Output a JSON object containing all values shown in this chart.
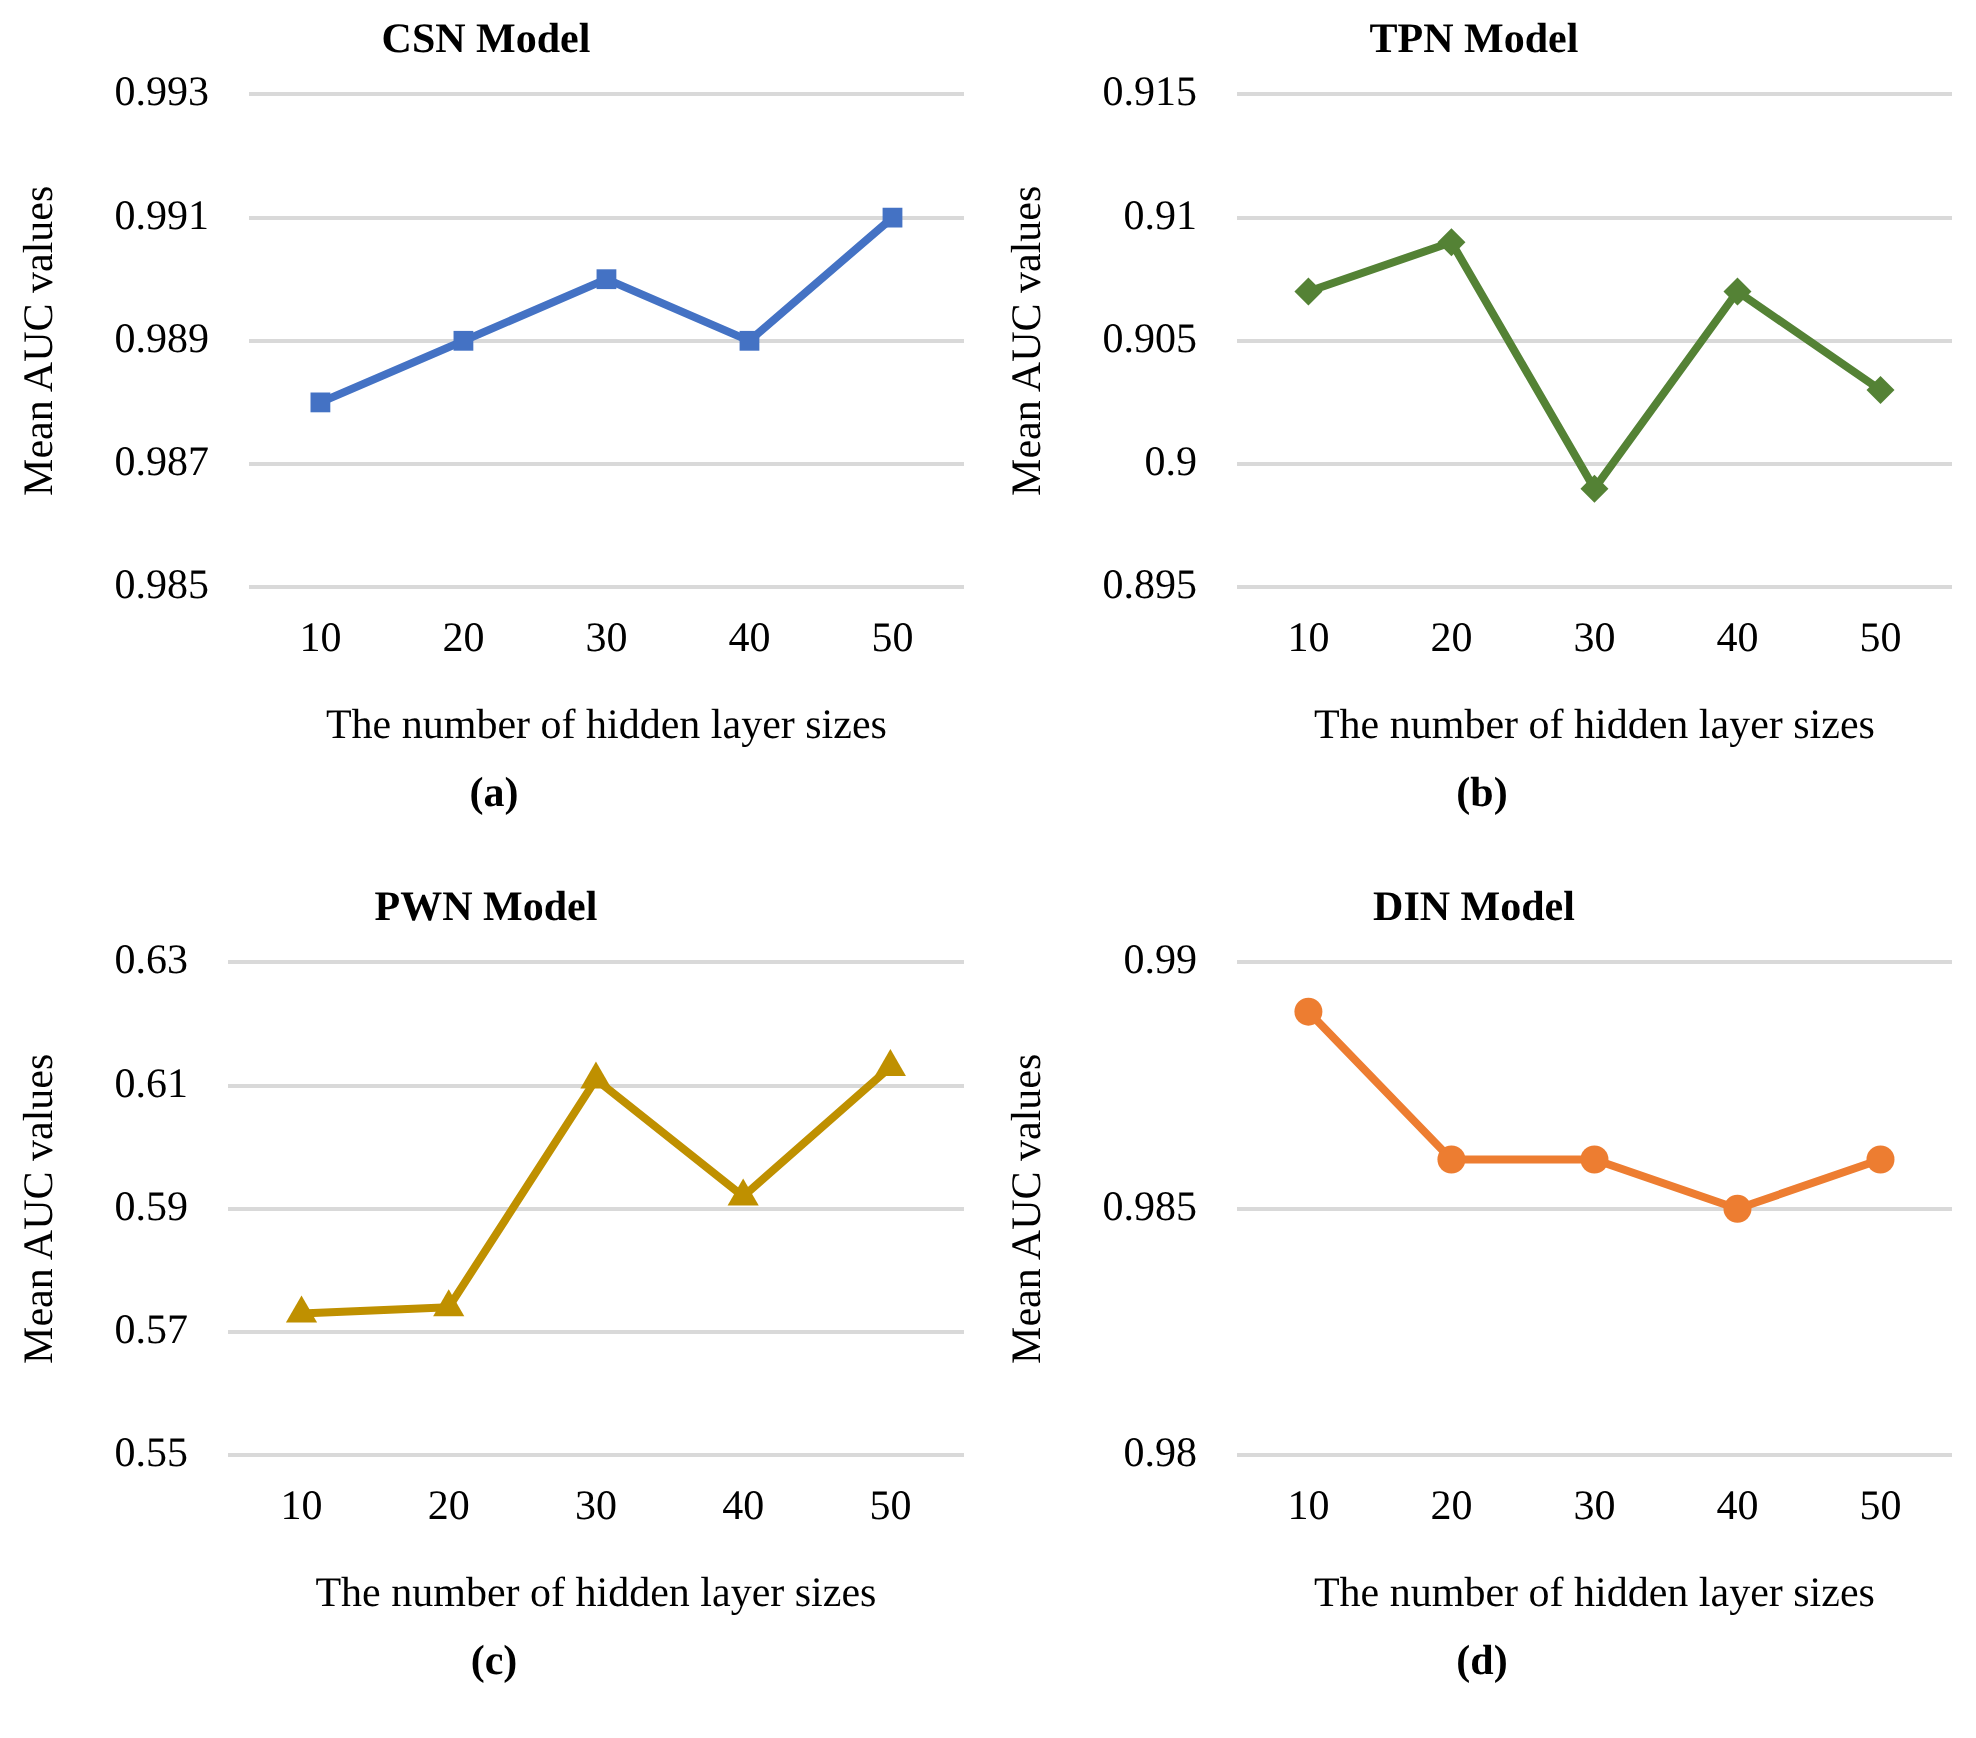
{
  "chart_data": [
    {
      "type": "line",
      "title": "CSN Model",
      "xlabel": "The number of hidden layer sizes",
      "ylabel": "Mean AUC values",
      "categories": [
        "10",
        "20",
        "30",
        "40",
        "50"
      ],
      "series": [
        {
          "color": "#4472c4",
          "values": [
            0.988,
            0.989,
            0.99,
            0.989,
            0.991
          ]
        }
      ],
      "ylim": [
        0.985,
        0.993
      ],
      "yticks": [
        {
          "value": 0.985,
          "label": "0.985"
        },
        {
          "value": 0.987,
          "label": "0.987"
        },
        {
          "value": 0.989,
          "label": "0.989"
        },
        {
          "value": 0.991,
          "label": "0.991"
        },
        {
          "value": 0.993,
          "label": "0.993"
        }
      ],
      "grid": "y",
      "legend": false,
      "marker": "square",
      "line_style": "solid",
      "annotations": [
        "(a)"
      ]
    },
    {
      "type": "line",
      "title": "TPN Model",
      "xlabel": "The number of hidden layer sizes",
      "ylabel": "Mean AUC values",
      "categories": [
        "10",
        "20",
        "30",
        "40",
        "50"
      ],
      "series": [
        {
          "color": "#548235",
          "values": [
            0.907,
            0.909,
            0.899,
            0.907,
            0.903
          ]
        }
      ],
      "ylim": [
        0.895,
        0.915
      ],
      "yticks": [
        {
          "value": 0.895,
          "label": "0.895"
        },
        0.9,
        {
          "value": 0.905,
          "label": "0.905"
        },
        0.91,
        {
          "value": 0.915,
          "label": "0.915"
        }
      ],
      "grid": "y",
      "legend": false,
      "marker": "diamond",
      "line_style": "solid",
      "annotations": [
        "(b)"
      ]
    },
    {
      "type": "line",
      "title": "PWN Model",
      "xlabel": "The number of hidden layer sizes",
      "ylabel": "Mean AUC values",
      "categories": [
        "10",
        "20",
        "30",
        "40",
        "50"
      ],
      "series": [
        {
          "color": "#bf9000",
          "values": [
            0.573,
            0.574,
            0.611,
            0.592,
            0.613
          ]
        }
      ],
      "ylim": [
        0.55,
        0.63
      ],
      "yticks": [
        0.55,
        0.57,
        0.59,
        0.61,
        0.63
      ],
      "grid": "y",
      "legend": false,
      "marker": "triangle",
      "line_style": "solid",
      "annotations": [
        "(c)"
      ]
    },
    {
      "type": "line",
      "title": "DIN Model",
      "xlabel": "The number of hidden layer sizes",
      "ylabel": "Mean AUC values",
      "categories": [
        "10",
        "20",
        "30",
        "40",
        "50"
      ],
      "series": [
        {
          "color": "#ed7d31",
          "values": [
            0.989,
            0.986,
            0.986,
            0.985,
            0.986
          ]
        }
      ],
      "ylim": [
        0.98,
        0.99
      ],
      "yticks": [
        0.98,
        0.985,
        0.99
      ],
      "grid": "y",
      "legend": false,
      "marker": "circle",
      "line_style": "solid",
      "annotations": [
        "(d)"
      ]
    }
  ]
}
